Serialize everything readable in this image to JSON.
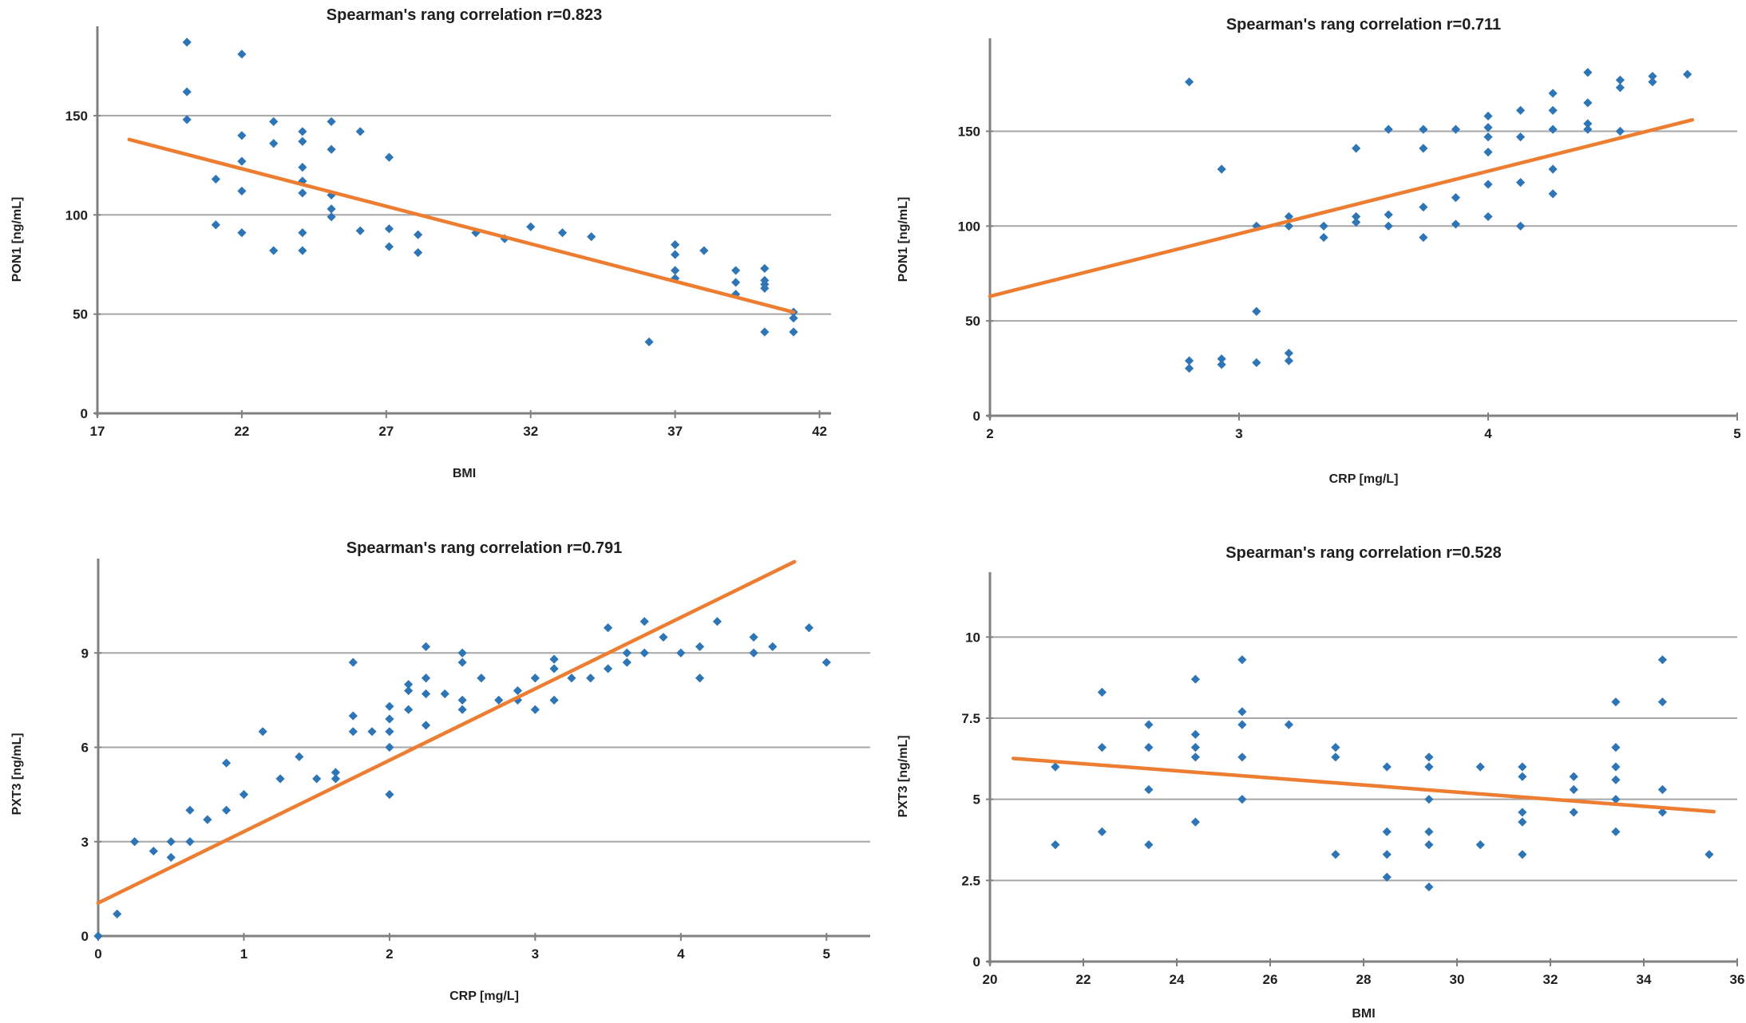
{
  "style": {
    "background": "#FFFFFF",
    "marker_color": "#2E75B6",
    "trend_color": "#ED7D31",
    "grid_color": "#A6A6A6",
    "axis_color": "#808080",
    "text_color": "#1F1F1F"
  },
  "chart_data": [
    {
      "type": "scatter",
      "title": "Spearman's rang correlation r=0.823",
      "spearman_r": 0.823,
      "xlabel": "BMI",
      "ylabel": "PON1 [ng/mL]",
      "xlim": [
        17,
        42.4
      ],
      "ylim": [
        0,
        195
      ],
      "xticks": [
        17,
        22,
        27,
        32,
        37,
        42
      ],
      "yticks": [
        0,
        50,
        100,
        150
      ],
      "grid": "horizontal",
      "legend": "none",
      "trend": {
        "x1": 18.1,
        "y1": 138,
        "x2": 41.1,
        "y2": 51
      },
      "points": [
        [
          20.1,
          187
        ],
        [
          20.1,
          162
        ],
        [
          20.1,
          148
        ],
        [
          21.1,
          118
        ],
        [
          21.1,
          95
        ],
        [
          22,
          181
        ],
        [
          22,
          140
        ],
        [
          22,
          127
        ],
        [
          22,
          112
        ],
        [
          22,
          91
        ],
        [
          23.1,
          147
        ],
        [
          23.1,
          136
        ],
        [
          23.1,
          82
        ],
        [
          24.1,
          142
        ],
        [
          24.1,
          137
        ],
        [
          24.1,
          124
        ],
        [
          24.1,
          117
        ],
        [
          24.1,
          111
        ],
        [
          24.1,
          91
        ],
        [
          24.1,
          82
        ],
        [
          25.1,
          147
        ],
        [
          25.1,
          133
        ],
        [
          25.1,
          110
        ],
        [
          25.1,
          103
        ],
        [
          25.1,
          99
        ],
        [
          26.1,
          142
        ],
        [
          26.1,
          92
        ],
        [
          27.1,
          129
        ],
        [
          27.1,
          93
        ],
        [
          27.1,
          84
        ],
        [
          28.1,
          90
        ],
        [
          28.1,
          81
        ],
        [
          30.1,
          91
        ],
        [
          31.1,
          88
        ],
        [
          32,
          94
        ],
        [
          33.1,
          91
        ],
        [
          34.1,
          89
        ],
        [
          36.1,
          36
        ],
        [
          37,
          85
        ],
        [
          37,
          80
        ],
        [
          37,
          72
        ],
        [
          37,
          68
        ],
        [
          38,
          82
        ],
        [
          39.1,
          72
        ],
        [
          39.1,
          66
        ],
        [
          39.1,
          60
        ],
        [
          40.1,
          73
        ],
        [
          40.1,
          67
        ],
        [
          40.1,
          65
        ],
        [
          40.1,
          63
        ],
        [
          40.1,
          41
        ],
        [
          41.1,
          51
        ],
        [
          41.1,
          48
        ],
        [
          41.1,
          41
        ]
      ]
    },
    {
      "type": "scatter",
      "title": "Spearman's rang correlation r=0.711",
      "spearman_r": 0.711,
      "xlabel": "CRP [mg/L]",
      "ylabel": "PON1 [ng/mL]",
      "xlim": [
        2,
        5
      ],
      "ylim": [
        0,
        199
      ],
      "xticks": [
        2,
        3,
        4,
        5
      ],
      "yticks": [
        0,
        50,
        100,
        150
      ],
      "grid": "horizontal",
      "legend": "none",
      "trend": {
        "x1": 2.0,
        "y1": 63,
        "x2": 4.82,
        "y2": 156
      },
      "points": [
        [
          2.8,
          176
        ],
        [
          2.8,
          29
        ],
        [
          2.8,
          25
        ],
        [
          2.93,
          130
        ],
        [
          2.93,
          30
        ],
        [
          2.93,
          27
        ],
        [
          3.07,
          100
        ],
        [
          3.07,
          55
        ],
        [
          3.07,
          28
        ],
        [
          3.2,
          105
        ],
        [
          3.2,
          100
        ],
        [
          3.2,
          33
        ],
        [
          3.2,
          29
        ],
        [
          3.34,
          100
        ],
        [
          3.34,
          94
        ],
        [
          3.47,
          141
        ],
        [
          3.47,
          105
        ],
        [
          3.47,
          102
        ],
        [
          3.6,
          151
        ],
        [
          3.6,
          106
        ],
        [
          3.6,
          100
        ],
        [
          3.74,
          151
        ],
        [
          3.74,
          141
        ],
        [
          3.74,
          110
        ],
        [
          3.74,
          94
        ],
        [
          3.87,
          151
        ],
        [
          3.87,
          115
        ],
        [
          3.87,
          101
        ],
        [
          4.0,
          158
        ],
        [
          4.0,
          152
        ],
        [
          4.0,
          147
        ],
        [
          4.0,
          139
        ],
        [
          4.0,
          122
        ],
        [
          4.0,
          105
        ],
        [
          4.13,
          161
        ],
        [
          4.13,
          147
        ],
        [
          4.13,
          123
        ],
        [
          4.13,
          100
        ],
        [
          4.26,
          170
        ],
        [
          4.26,
          161
        ],
        [
          4.26,
          151
        ],
        [
          4.26,
          130
        ],
        [
          4.26,
          117
        ],
        [
          4.4,
          181
        ],
        [
          4.4,
          165
        ],
        [
          4.4,
          154
        ],
        [
          4.4,
          151
        ],
        [
          4.53,
          177
        ],
        [
          4.53,
          173
        ],
        [
          4.53,
          150
        ],
        [
          4.66,
          179
        ],
        [
          4.66,
          176
        ],
        [
          4.8,
          180
        ]
      ]
    },
    {
      "type": "scatter",
      "title": "Spearman's rang correlation  r=0.791",
      "spearman_r": 0.791,
      "xlabel": "CRP [mg/L]",
      "ylabel": "PXT3 [ng/mL]",
      "xlim": [
        0,
        5.3
      ],
      "ylim": [
        0,
        12
      ],
      "xticks": [
        0,
        1,
        2,
        3,
        4,
        5
      ],
      "yticks": [
        0,
        3,
        6,
        9
      ],
      "grid": "horizontal",
      "legend": "none",
      "trend": {
        "x1": 0.0,
        "y1": 1.05,
        "x2": 4.78,
        "y2": 11.9
      },
      "points": [
        [
          0,
          0
        ],
        [
          0.13,
          0.7
        ],
        [
          0.25,
          3.0
        ],
        [
          0.38,
          2.7
        ],
        [
          0.5,
          3.0
        ],
        [
          0.5,
          2.5
        ],
        [
          0.63,
          4.0
        ],
        [
          0.63,
          3.0
        ],
        [
          0.75,
          3.7
        ],
        [
          0.88,
          5.5
        ],
        [
          0.88,
          4.0
        ],
        [
          1.0,
          4.5
        ],
        [
          1.13,
          6.5
        ],
        [
          1.25,
          5.0
        ],
        [
          1.38,
          5.7
        ],
        [
          1.5,
          5.0
        ],
        [
          1.63,
          5.2
        ],
        [
          1.63,
          5.0
        ],
        [
          1.75,
          8.7
        ],
        [
          1.75,
          7.0
        ],
        [
          1.75,
          6.5
        ],
        [
          1.88,
          6.5
        ],
        [
          2.0,
          7.3
        ],
        [
          2.0,
          6.9
        ],
        [
          2.0,
          6.5
        ],
        [
          2.0,
          6.0
        ],
        [
          2.0,
          4.5
        ],
        [
          2.13,
          8.0
        ],
        [
          2.13,
          7.8
        ],
        [
          2.13,
          7.2
        ],
        [
          2.25,
          9.2
        ],
        [
          2.25,
          8.2
        ],
        [
          2.25,
          7.7
        ],
        [
          2.25,
          6.7
        ],
        [
          2.38,
          7.7
        ],
        [
          2.5,
          9.0
        ],
        [
          2.5,
          8.7
        ],
        [
          2.5,
          7.5
        ],
        [
          2.5,
          7.2
        ],
        [
          2.63,
          8.2
        ],
        [
          2.75,
          7.5
        ],
        [
          2.88,
          7.8
        ],
        [
          2.88,
          7.5
        ],
        [
          3.0,
          8.2
        ],
        [
          3.0,
          7.2
        ],
        [
          3.13,
          8.8
        ],
        [
          3.13,
          8.5
        ],
        [
          3.13,
          7.5
        ],
        [
          3.25,
          8.2
        ],
        [
          3.38,
          8.2
        ],
        [
          3.5,
          9.8
        ],
        [
          3.5,
          8.5
        ],
        [
          3.63,
          9.0
        ],
        [
          3.63,
          8.7
        ],
        [
          3.75,
          10.0
        ],
        [
          3.75,
          9.0
        ],
        [
          3.88,
          9.5
        ],
        [
          4.0,
          9.0
        ],
        [
          4.13,
          9.2
        ],
        [
          4.13,
          8.2
        ],
        [
          4.25,
          10.0
        ],
        [
          4.5,
          9.5
        ],
        [
          4.5,
          9.0
        ],
        [
          4.63,
          9.2
        ],
        [
          4.88,
          9.8
        ],
        [
          5.0,
          8.7
        ]
      ]
    },
    {
      "type": "scatter",
      "title": "Spearman's rang correlation r=0.528",
      "spearman_r": 0.528,
      "xlabel": "BMI",
      "ylabel": "PXT3 [ng/mL]",
      "xlim": [
        20,
        36
      ],
      "ylim": [
        0,
        12
      ],
      "xticks": [
        20,
        22,
        24,
        26,
        28,
        30,
        32,
        34,
        36
      ],
      "yticks": [
        0,
        2.5,
        5,
        7.5,
        10
      ],
      "grid": "horizontal",
      "legend": "none",
      "trend": {
        "x1": 20.5,
        "y1": 6.26,
        "x2": 35.5,
        "y2": 4.62
      },
      "points": [
        [
          21.4,
          6.0
        ],
        [
          21.4,
          3.6
        ],
        [
          22.4,
          8.3
        ],
        [
          22.4,
          6.6
        ],
        [
          22.4,
          4.0
        ],
        [
          23.4,
          7.3
        ],
        [
          23.4,
          6.6
        ],
        [
          23.4,
          5.3
        ],
        [
          23.4,
          3.6
        ],
        [
          24.4,
          8.7
        ],
        [
          24.4,
          7.0
        ],
        [
          24.4,
          6.6
        ],
        [
          24.4,
          6.3
        ],
        [
          24.4,
          4.3
        ],
        [
          25.4,
          9.3
        ],
        [
          25.4,
          7.7
        ],
        [
          25.4,
          7.3
        ],
        [
          25.4,
          6.3
        ],
        [
          25.4,
          5.0
        ],
        [
          26.4,
          7.3
        ],
        [
          27.4,
          6.6
        ],
        [
          27.4,
          6.3
        ],
        [
          27.4,
          3.3
        ],
        [
          28.5,
          6.0
        ],
        [
          28.5,
          4.0
        ],
        [
          28.5,
          3.3
        ],
        [
          28.5,
          2.6
        ],
        [
          29.4,
          6.3
        ],
        [
          29.4,
          6.0
        ],
        [
          29.4,
          5.0
        ],
        [
          29.4,
          4.0
        ],
        [
          29.4,
          3.6
        ],
        [
          29.4,
          2.3
        ],
        [
          30.5,
          6.0
        ],
        [
          30.5,
          3.6
        ],
        [
          31.4,
          6.0
        ],
        [
          31.4,
          5.7
        ],
        [
          31.4,
          4.6
        ],
        [
          31.4,
          4.3
        ],
        [
          31.4,
          3.3
        ],
        [
          32.5,
          5.7
        ],
        [
          32.5,
          5.3
        ],
        [
          32.5,
          4.6
        ],
        [
          33.4,
          8.0
        ],
        [
          33.4,
          6.6
        ],
        [
          33.4,
          6.0
        ],
        [
          33.4,
          5.6
        ],
        [
          33.4,
          5.0
        ],
        [
          33.4,
          4.0
        ],
        [
          34.4,
          9.3
        ],
        [
          34.4,
          8.0
        ],
        [
          34.4,
          5.3
        ],
        [
          34.4,
          4.6
        ],
        [
          35.4,
          3.3
        ]
      ]
    }
  ]
}
